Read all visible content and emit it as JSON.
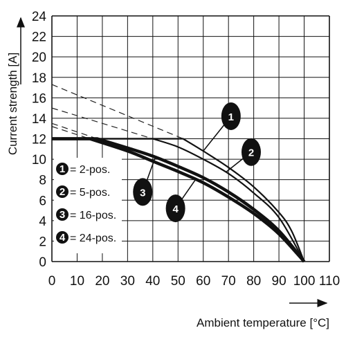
{
  "chart_data": {
    "type": "line",
    "xlabel": "Ambient temperature [°C]",
    "ylabel": "Current strength [A]",
    "xlim": [
      0,
      110
    ],
    "ylim": [
      0,
      24
    ],
    "x_ticks": [
      0,
      10,
      20,
      30,
      40,
      50,
      60,
      70,
      80,
      90,
      100,
      110
    ],
    "y_ticks": [
      0,
      2,
      4,
      6,
      8,
      10,
      12,
      14,
      16,
      18,
      20,
      22,
      24
    ],
    "grid": true,
    "legend_position": "bottom-left",
    "legend": [
      {
        "badge": "1",
        "label": "= 2-pos."
      },
      {
        "badge": "2",
        "label": "= 5-pos."
      },
      {
        "badge": "3",
        "label": "= 16-pos."
      },
      {
        "badge": "4",
        "label": "= 24-pos."
      }
    ],
    "series": [
      {
        "badge": "1",
        "line_width": "thin",
        "x": [
          0,
          52,
          60,
          70,
          80,
          90,
          95,
          100
        ],
        "y": [
          12,
          12,
          10.8,
          9.2,
          7.3,
          4.8,
          3,
          0
        ],
        "dashed_x": [
          0,
          52
        ],
        "dashed_y": [
          17.3,
          12
        ],
        "callout": {
          "x": 71,
          "y": 14.2
        }
      },
      {
        "badge": "2",
        "line_width": "thin",
        "x": [
          0,
          40,
          50,
          60,
          70,
          80,
          90,
          100
        ],
        "y": [
          12,
          12,
          11.2,
          10,
          8.6,
          6.7,
          4.3,
          0
        ],
        "dashed_x": [
          0,
          40
        ],
        "dashed_y": [
          15,
          12
        ],
        "callout": {
          "x": 79,
          "y": 10.7
        }
      },
      {
        "badge": "3",
        "line_width": "thick",
        "x": [
          0,
          18,
          30,
          40,
          50,
          60,
          70,
          80,
          90,
          100
        ],
        "y": [
          12,
          12,
          11.1,
          10.3,
          9.3,
          8.2,
          6.8,
          5.1,
          3,
          0
        ],
        "dashed_x": [
          0,
          18
        ],
        "dashed_y": [
          13.5,
          12
        ],
        "callout": {
          "x": 36,
          "y": 6.8
        }
      },
      {
        "badge": "4",
        "line_width": "thick",
        "x": [
          0,
          15,
          30,
          40,
          50,
          60,
          70,
          80,
          90,
          100
        ],
        "y": [
          12,
          12,
          10.8,
          9.8,
          8.8,
          7.7,
          6.3,
          4.7,
          2.7,
          0
        ],
        "dashed_x": [
          0,
          15
        ],
        "dashed_y": [
          13.2,
          12
        ],
        "callout": {
          "x": 49,
          "y": 5.2
        }
      }
    ]
  }
}
